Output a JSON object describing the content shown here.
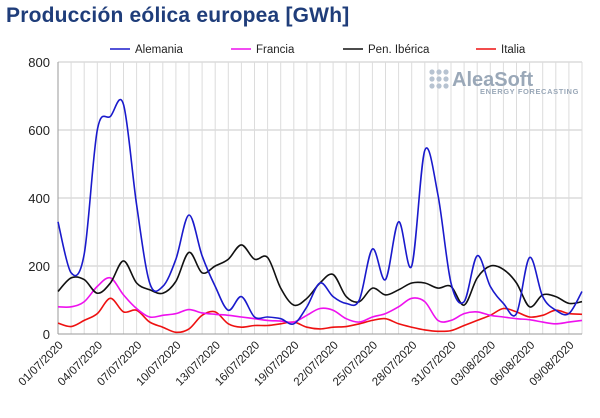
{
  "chart_data": {
    "type": "line",
    "title": "Producción eólica europea [GWh]",
    "ylim": [
      0,
      800
    ],
    "yticks": [
      0,
      200,
      400,
      600,
      800
    ],
    "x_start": "01/07/2020",
    "x_end": "09/08/2020",
    "x_tick_labels": [
      "01/07/2020",
      "04/07/2020",
      "07/07/2020",
      "10/07/2020",
      "13/07/2020",
      "16/07/2020",
      "19/07/2020",
      "22/07/2020",
      "25/07/2020",
      "28/07/2020",
      "31/07/2020",
      "03/08/2020",
      "06/08/2020",
      "09/08/2020"
    ],
    "grid": true,
    "legend_position": "top",
    "watermark": {
      "brand": "AleaSoft",
      "tagline": "ENERGY FORECASTING"
    },
    "series": [
      {
        "name": "Alemania",
        "color": "#1a1acc",
        "values": [
          330,
          180,
          235,
          600,
          640,
          675,
          380,
          150,
          140,
          220,
          350,
          230,
          140,
          70,
          110,
          50,
          50,
          45,
          30,
          80,
          150,
          110,
          90,
          100,
          250,
          160,
          330,
          200,
          540,
          410,
          150,
          95,
          230,
          140,
          90,
          60,
          225,
          110,
          70,
          60,
          125
        ]
      },
      {
        "name": "Francia",
        "color": "#ee11ee",
        "values": [
          80,
          80,
          95,
          140,
          165,
          115,
          75,
          50,
          55,
          60,
          72,
          62,
          58,
          55,
          50,
          45,
          40,
          38,
          35,
          55,
          75,
          70,
          45,
          35,
          50,
          60,
          80,
          105,
          95,
          40,
          40,
          60,
          65,
          55,
          50,
          45,
          42,
          35,
          30,
          35,
          40
        ]
      },
      {
        "name": "Pen. Ibérica",
        "color": "#111111",
        "values": [
          125,
          165,
          160,
          120,
          150,
          215,
          150,
          130,
          120,
          155,
          240,
          180,
          200,
          220,
          262,
          220,
          225,
          135,
          85,
          105,
          150,
          175,
          110,
          95,
          135,
          115,
          130,
          150,
          150,
          135,
          140,
          85,
          165,
          200,
          190,
          150,
          80,
          115,
          110,
          90,
          95
        ]
      },
      {
        "name": "Italia",
        "color": "#ee1111",
        "values": [
          32,
          22,
          40,
          60,
          105,
          65,
          70,
          35,
          20,
          5,
          15,
          55,
          65,
          30,
          20,
          25,
          25,
          30,
          35,
          20,
          15,
          20,
          22,
          30,
          40,
          45,
          30,
          20,
          12,
          8,
          10,
          25,
          40,
          55,
          75,
          65,
          50,
          55,
          70,
          60,
          58
        ]
      }
    ]
  }
}
